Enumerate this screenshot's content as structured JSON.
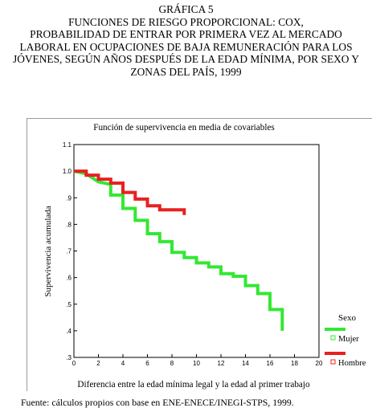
{
  "heading": {
    "label": "GRÁFICA 5",
    "lines": [
      "FUNCIONES DE RIESGO PROPORCIONAL: COX,",
      "PROBABILIDAD DE ENTRAR POR PRIMERA VEZ AL MERCADO",
      "LABORAL EN OCUPACIONES DE BAJA REMUNERACIÓN PARA LOS",
      "JÓVENES, SEGÚN AÑOS DESPUÉS DE LA EDAD MÍNIMA, POR SEXO Y",
      "ZONAS DEL PAÍS, 1999"
    ]
  },
  "source": "Fuente: cálculos propios con base en ENE-ENECE/INEGI-STPS, 1999.",
  "chart_data": {
    "type": "line",
    "step": true,
    "title": "Función de supervivencia en media de covariables",
    "xlabel": "Diferencia entre la edad mínima legal y la edad al primer trabajo",
    "ylabel": "Supervivencia acumulada",
    "xlim": [
      0,
      20
    ],
    "ylim": [
      0.3,
      1.1
    ],
    "x_ticks": [
      "0",
      "2",
      "4",
      "6",
      "8",
      "10",
      "12",
      "14",
      "16",
      "18",
      "20"
    ],
    "y_ticks": [
      {
        "value": 1.1,
        "label": "1.1"
      },
      {
        "value": 1.0,
        "label": "1.0"
      },
      {
        "value": 0.9,
        "label": ".9"
      },
      {
        "value": 0.8,
        "label": ".8"
      },
      {
        "value": 0.7,
        "label": ".7"
      },
      {
        "value": 0.6,
        "label": ".6"
      },
      {
        "value": 0.5,
        "label": ".5"
      },
      {
        "value": 0.4,
        "label": ".4"
      },
      {
        "value": 0.3,
        "label": ".3"
      }
    ],
    "grid": false,
    "legend_title": "Sexo",
    "legend_position": "right",
    "series": [
      {
        "name": "Mujer",
        "color": "#33e833",
        "points": [
          [
            0,
            1.0
          ],
          [
            1,
            0.99
          ],
          [
            2,
            0.96
          ],
          [
            3,
            0.95
          ],
          [
            3,
            0.91
          ],
          [
            4,
            0.91
          ],
          [
            4,
            0.86
          ],
          [
            5,
            0.86
          ],
          [
            5,
            0.815
          ],
          [
            6,
            0.815
          ],
          [
            6,
            0.765
          ],
          [
            7,
            0.765
          ],
          [
            7,
            0.735
          ],
          [
            8,
            0.735
          ],
          [
            8,
            0.695
          ],
          [
            9,
            0.695
          ],
          [
            9,
            0.675
          ],
          [
            10,
            0.675
          ],
          [
            10,
            0.655
          ],
          [
            11,
            0.655
          ],
          [
            11,
            0.64
          ],
          [
            12,
            0.64
          ],
          [
            12,
            0.615
          ],
          [
            13,
            0.615
          ],
          [
            13,
            0.605
          ],
          [
            14,
            0.605
          ],
          [
            14,
            0.57
          ],
          [
            15,
            0.57
          ],
          [
            15,
            0.54
          ],
          [
            16,
            0.54
          ],
          [
            16,
            0.48
          ],
          [
            17,
            0.48
          ],
          [
            17,
            0.4
          ]
        ]
      },
      {
        "name": "Hombre",
        "color": "#e82020",
        "points": [
          [
            0,
            1.0
          ],
          [
            1,
            1.0
          ],
          [
            1,
            0.985
          ],
          [
            2,
            0.985
          ],
          [
            2,
            0.97
          ],
          [
            3,
            0.97
          ],
          [
            3,
            0.955
          ],
          [
            4,
            0.955
          ],
          [
            4,
            0.92
          ],
          [
            5,
            0.92
          ],
          [
            5,
            0.895
          ],
          [
            6,
            0.895
          ],
          [
            6,
            0.87
          ],
          [
            7,
            0.87
          ],
          [
            7,
            0.855
          ],
          [
            9,
            0.855
          ],
          [
            9,
            0.835
          ]
        ]
      }
    ]
  }
}
